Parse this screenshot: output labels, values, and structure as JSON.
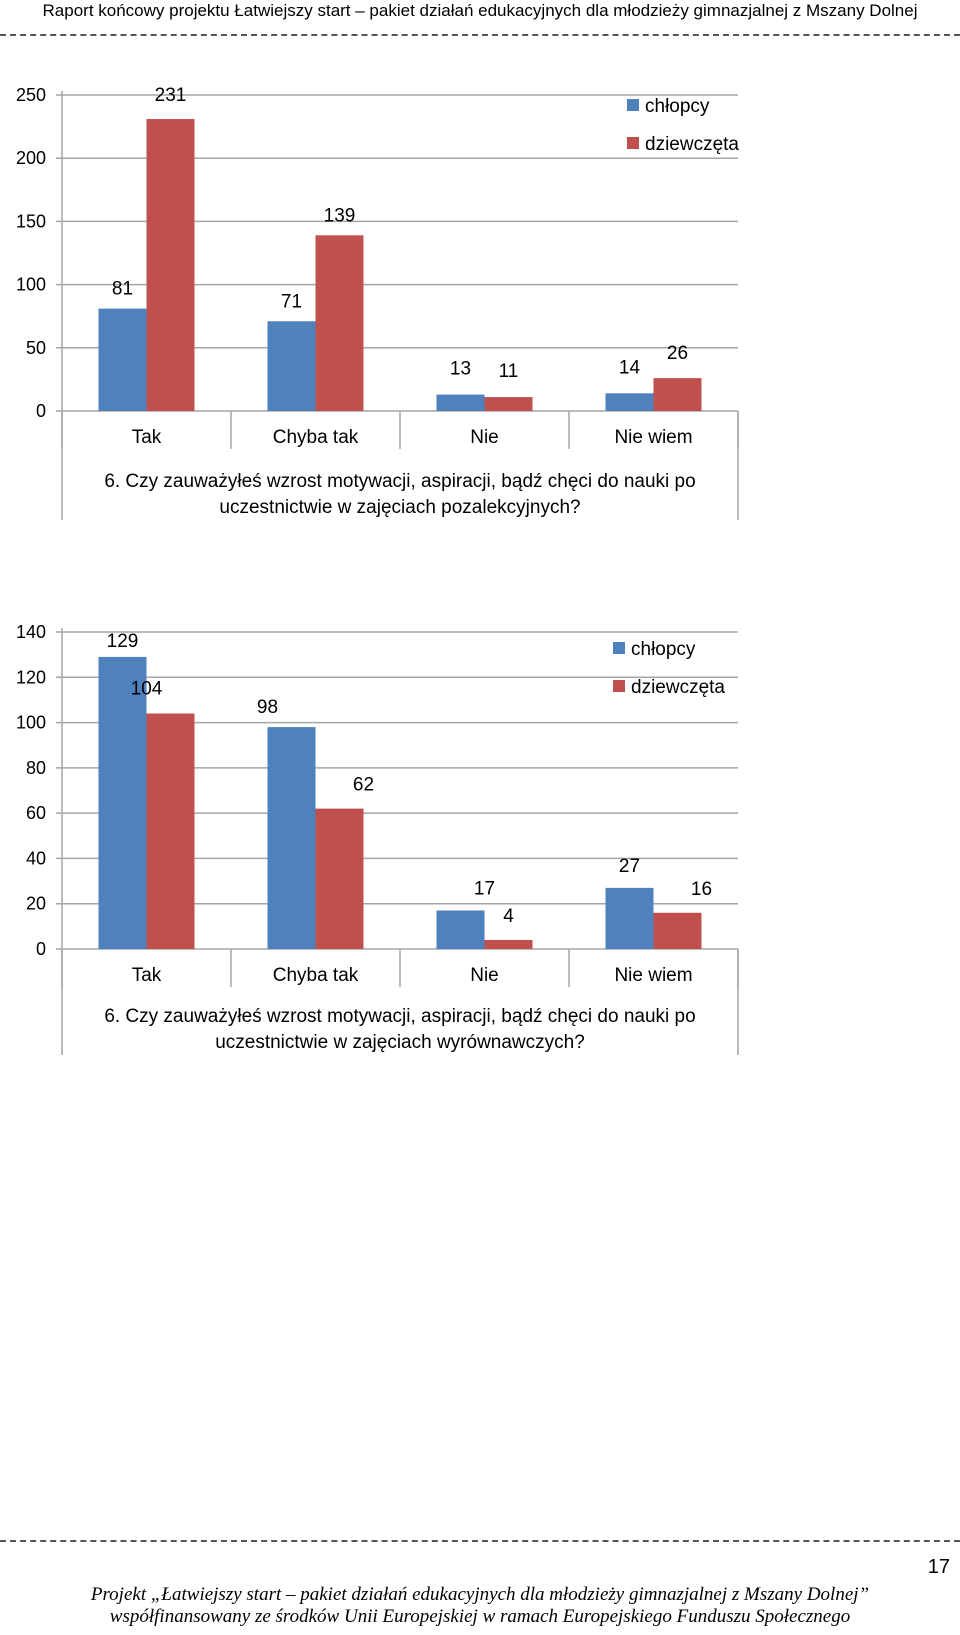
{
  "header": {
    "title": "Raport końcowy projektu Łatwiejszy start – pakiet działań edukacyjnych dla młodzieży gimnazjalnej z Mszany Dolnej"
  },
  "colors": {
    "series1": "#4f81bd",
    "series2": "#c0504d",
    "grid": "#a6a6a6"
  },
  "chart_data": [
    {
      "type": "bar",
      "title_lines": [
        "6. Czy zauważyłeś wzrost motywacji, aspiracji, bądź chęci do nauki po",
        "uczestnictwie w zajęciach pozalekcyjnych?"
      ],
      "categories": [
        "Tak",
        "Chyba tak",
        "Nie",
        "Nie wiem"
      ],
      "series": [
        {
          "name": "chłopcy",
          "values": [
            81,
            71,
            13,
            14
          ]
        },
        {
          "name": "dziewczęta",
          "values": [
            231,
            139,
            11,
            26
          ]
        }
      ],
      "yticks": [
        "0",
        "50",
        "100",
        "150",
        "200",
        "250"
      ],
      "ylim": [
        0,
        250
      ],
      "grid": true,
      "legend": "top-right"
    },
    {
      "type": "bar",
      "title_lines": [
        "6. Czy zauważyłeś wzrost motywacji, aspiracji, bądź chęci do nauki po",
        "uczestnictwie w zajęciach wyrównawczych?"
      ],
      "categories": [
        "Tak",
        "Chyba tak",
        "Nie",
        "Nie wiem"
      ],
      "series": [
        {
          "name": "chłopcy",
          "values": [
            129,
            98,
            17,
            27
          ]
        },
        {
          "name": "dziewczęta",
          "values": [
            104,
            62,
            4,
            16
          ]
        }
      ],
      "yticks": [
        "0",
        "20",
        "40",
        "60",
        "80",
        "100",
        "120",
        "140"
      ],
      "ylim": [
        0,
        140
      ],
      "grid": true,
      "legend": "top-right"
    }
  ],
  "page_number": "17",
  "footer": {
    "line1": "Projekt „Łatwiejszy start – pakiet działań edukacyjnych dla młodzieży gimnazjalnej z Mszany Dolnej”",
    "line2": "współfinansowany ze środków Unii Europejskiej w ramach Europejskiego Funduszu Społecznego"
  }
}
